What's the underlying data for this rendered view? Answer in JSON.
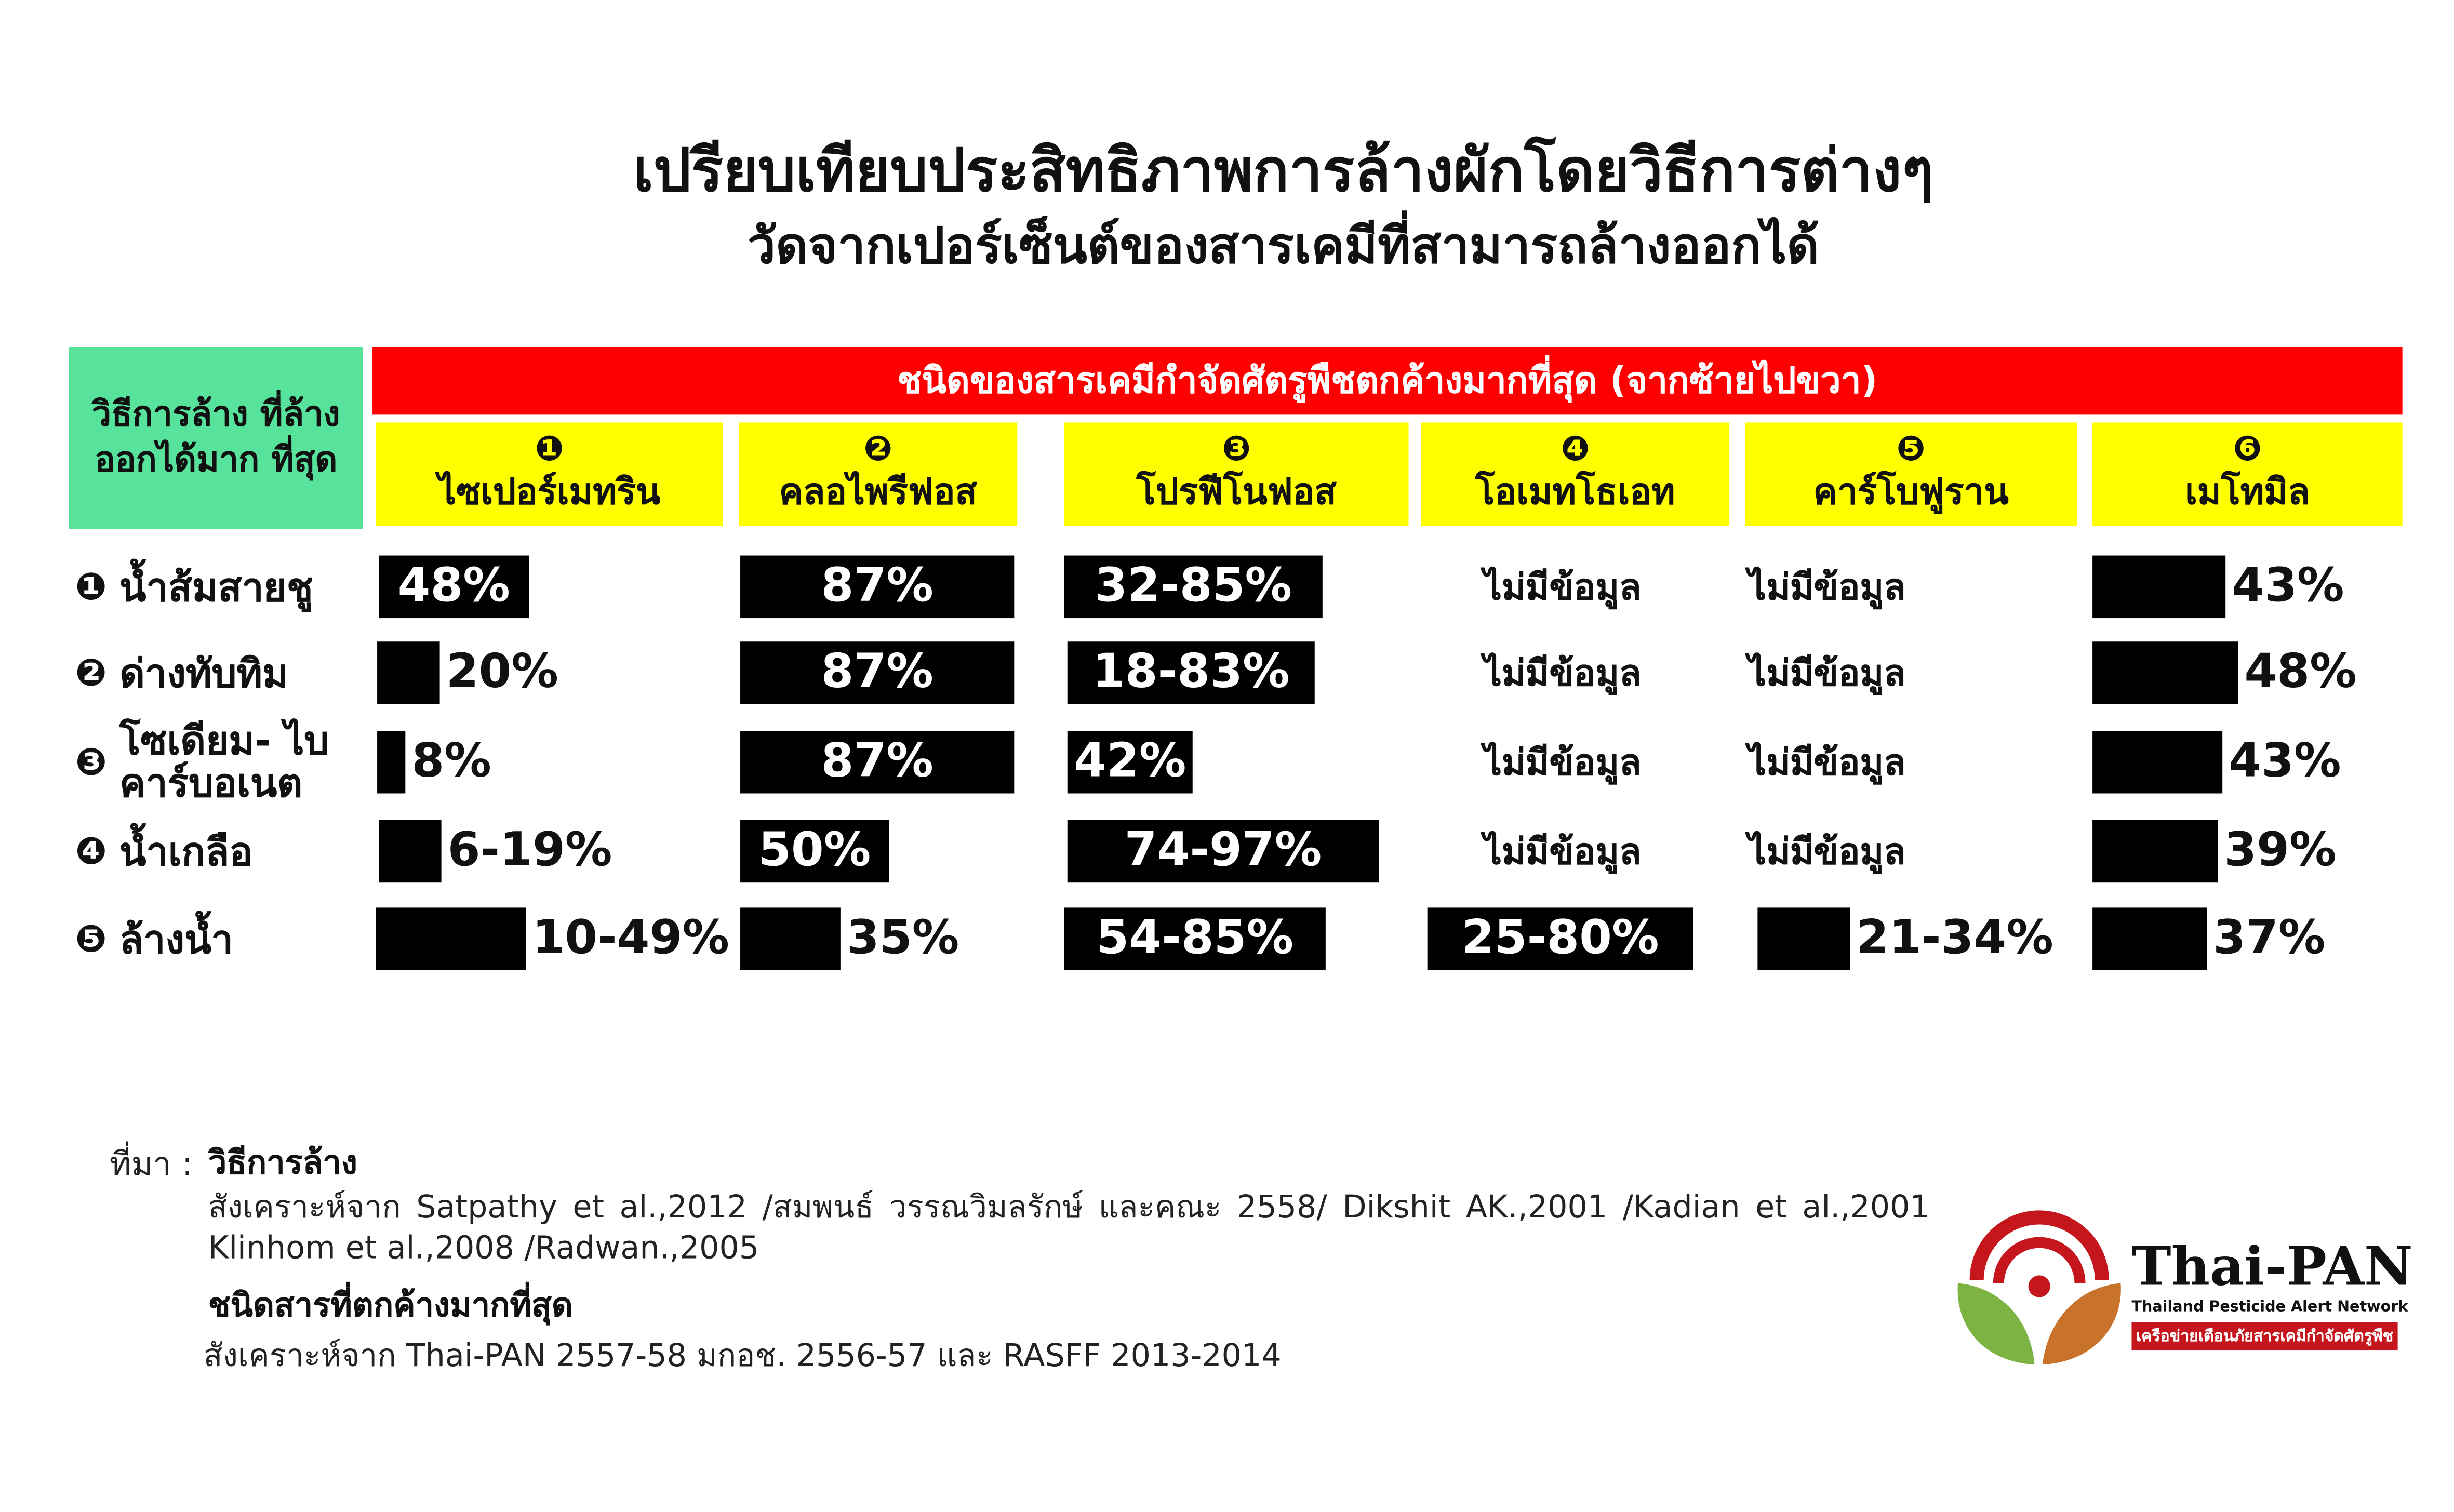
{
  "header": {
    "title": "เปรียบเทียบประสิทธิภาพการล้างผักโดยวิธีการต่างๆ",
    "subtitle": "วัดจากเปอร์เซ็นต์ของสารเคมีที่สามารถล้างออกได้"
  },
  "table": {
    "corner": "วิธีการล้าง ที่ล้างออกได้มาก ที่สุด",
    "group_header": "ชนิดของสารเคมีกำจัดศัตรูพืชตกค้างมากที่สุด (จากซ้ายไปขวา)",
    "columns": [
      {
        "number": "❶",
        "name": "ไซเปอร์เมทริน"
      },
      {
        "number": "❷",
        "name": "คลอไพรีฟอส"
      },
      {
        "number": "❸",
        "name": "โปรฟีโนฟอส"
      },
      {
        "number": "❹",
        "name": "โอเมทโธเอท"
      },
      {
        "number": "❺",
        "name": "คาร์โบฟูราน"
      },
      {
        "number": "❻",
        "name": "เมโทมิล"
      }
    ],
    "rows": [
      {
        "number": "❶",
        "label": "น้ำส้มสายชู",
        "cells": [
          "48%",
          "87%",
          "32-85%",
          "ไม่มีข้อมูล",
          "ไม่มีข้อมูล",
          "43%"
        ]
      },
      {
        "number": "❷",
        "label": "ด่างทับทิม",
        "cells": [
          "20%",
          "87%",
          "18-83%",
          "ไม่มีข้อมูล",
          "ไม่มีข้อมูล",
          "48%"
        ]
      },
      {
        "number": "❸",
        "label": "โซเดียม- ไบคาร์บอเนต",
        "cells": [
          "8%",
          "87%",
          "42%",
          "ไม่มีข้อมูล",
          "ไม่มีข้อมูล",
          "43%"
        ]
      },
      {
        "number": "❹",
        "label": "น้ำเกลือ",
        "cells": [
          "6-19%",
          "50%",
          "74-97%",
          "ไม่มีข้อมูล",
          "ไม่มีข้อมูล",
          "39%"
        ]
      },
      {
        "number": "❺",
        "label": "ล้างน้ำ",
        "cells": [
          "10-49%",
          "35%",
          "54-85%",
          "25-80%",
          "21-34%",
          "37%"
        ]
      }
    ]
  },
  "source": {
    "label": "ที่มา :",
    "heading1": "วิธีการล้าง",
    "text1": "สังเคราะห์จาก Satpathy et al.,2012 /สมพนธ์ วรรณวิมลรักษ์ และคณะ 2558/ Dikshit AK.,2001 /Kadian et al.,2001 Klinhom et al.,2008 /Radwan.,2005",
    "heading2": "ชนิดสารที่ตกค้างมากที่สุด",
    "text2": "สังเคราะห์จาก Thai-PAN 2557-58 มกอช. 2556-57 และ RASFF 2013-2014"
  },
  "logo": {
    "name": "Thai-PAN",
    "tagline": "Thailand Pesticide Alert Network",
    "thai": "เครือข่ายเตือนภัยสารเคมีกำจัดศัตรูพืช"
  }
}
